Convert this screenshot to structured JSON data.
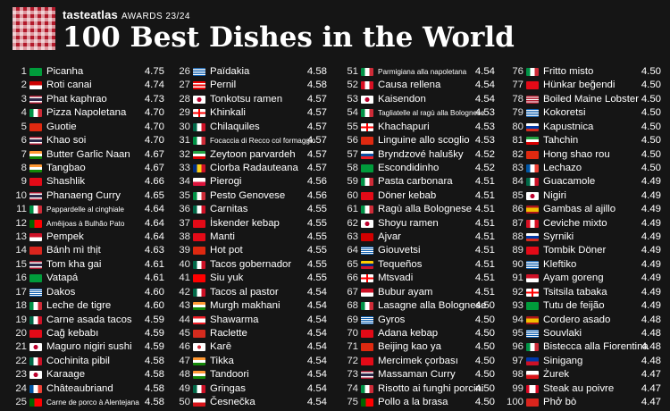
{
  "brand": {
    "name": "tasteatlas",
    "awards": "AWARDS 23/24"
  },
  "title": "100 Best Dishes in the World",
  "columns": [
    [
      {
        "rank": "1",
        "flag": "br",
        "dish": "Picanha",
        "score": "4.75"
      },
      {
        "rank": "2",
        "flag": "my",
        "dish": "Roti canai",
        "score": "4.74"
      },
      {
        "rank": "3",
        "flag": "th",
        "dish": "Phat kaphrao",
        "score": "4.73"
      },
      {
        "rank": "4",
        "flag": "it",
        "dish": "Pizza Napoletana",
        "score": "4.70"
      },
      {
        "rank": "5",
        "flag": "cn",
        "dish": "Guotie",
        "score": "4.70"
      },
      {
        "rank": "6",
        "flag": "th",
        "dish": "Khao soi",
        "score": "4.70"
      },
      {
        "rank": "7",
        "flag": "in",
        "dish": "Butter Garlic Naan",
        "score": "4.67"
      },
      {
        "rank": "8",
        "flag": "in",
        "dish": "Tangbao",
        "score": "4.67"
      },
      {
        "rank": "9",
        "flag": "tr",
        "dish": "Shashlik",
        "score": "4.66"
      },
      {
        "rank": "10",
        "flag": "th",
        "dish": "Phanaeng Curry",
        "score": "4.65"
      },
      {
        "rank": "11",
        "flag": "it",
        "dish": "Pappardelle al cinghiale",
        "score": "4.64",
        "sm": true
      },
      {
        "rank": "12",
        "flag": "pt",
        "dish": "Amêijoas à Bulhão Pato",
        "score": "4.64",
        "sm": true
      },
      {
        "rank": "13",
        "flag": "id",
        "dish": "Pempek",
        "score": "4.64"
      },
      {
        "rank": "14",
        "flag": "vn",
        "dish": "Bánh mì thịt",
        "score": "4.63"
      },
      {
        "rank": "15",
        "flag": "th",
        "dish": "Tom kha gai",
        "score": "4.61"
      },
      {
        "rank": "16",
        "flag": "br",
        "dish": "Vatapá",
        "score": "4.61"
      },
      {
        "rank": "17",
        "flag": "gr",
        "dish": "Dakos",
        "score": "4.60"
      },
      {
        "rank": "18",
        "flag": "it",
        "dish": "Leche de tigre",
        "score": "4.60"
      },
      {
        "rank": "19",
        "flag": "mx",
        "dish": "Carne asada tacos",
        "score": "4.59"
      },
      {
        "rank": "20",
        "flag": "tr",
        "dish": "Cağ kebabı",
        "score": "4.59"
      },
      {
        "rank": "21",
        "flag": "jp",
        "dish": "Maguro nigiri sushi",
        "score": "4.59"
      },
      {
        "rank": "22",
        "flag": "mx",
        "dish": "Cochinita pibil",
        "score": "4.58"
      },
      {
        "rank": "23",
        "flag": "jp",
        "dish": "Karaage",
        "score": "4.58"
      },
      {
        "rank": "24",
        "flag": "fr",
        "dish": "Châteaubriand",
        "score": "4.58"
      },
      {
        "rank": "25",
        "flag": "pt",
        "dish": "Carne de porco à Alentejana",
        "score": "4.58",
        "sm": true
      }
    ],
    [
      {
        "rank": "26",
        "flag": "gr",
        "dish": "Paїdakia",
        "score": "4.58"
      },
      {
        "rank": "27",
        "flag": "pr",
        "dish": "Pernil",
        "score": "4.58"
      },
      {
        "rank": "28",
        "flag": "jp",
        "dish": "Tonkotsu ramen",
        "score": "4.57"
      },
      {
        "rank": "29",
        "flag": "ge",
        "dish": "Khinkali",
        "score": "4.57"
      },
      {
        "rank": "30",
        "flag": "mx",
        "dish": "Chilaquiles",
        "score": "4.57"
      },
      {
        "rank": "31",
        "flag": "it",
        "dish": "Focaccia di Recco col formaggio",
        "score": "4.57",
        "sm": true
      },
      {
        "rank": "32",
        "flag": "ir",
        "dish": "Zeytoon parvardeh",
        "score": "4.57"
      },
      {
        "rank": "33",
        "flag": "ro",
        "dish": "Ciorba Radauteana",
        "score": "4.57"
      },
      {
        "rank": "34",
        "flag": "pl",
        "dish": "Pierogi",
        "score": "4.56"
      },
      {
        "rank": "35",
        "flag": "it",
        "dish": "Pesto Genovese",
        "score": "4.56"
      },
      {
        "rank": "36",
        "flag": "mx",
        "dish": "Carnitas",
        "score": "4.55"
      },
      {
        "rank": "37",
        "flag": "tr",
        "dish": "İskender kebap",
        "score": "4.55"
      },
      {
        "rank": "38",
        "flag": "tr",
        "dish": "Manti",
        "score": "4.55"
      },
      {
        "rank": "39",
        "flag": "cn",
        "dish": "Hot pot",
        "score": "4.55"
      },
      {
        "rank": "40",
        "flag": "mx",
        "dish": "Tacos gobernador",
        "score": "4.55"
      },
      {
        "rank": "41",
        "flag": "tw",
        "dish": "Siu yuk",
        "score": "4.55"
      },
      {
        "rank": "42",
        "flag": "mx",
        "dish": "Tacos al pastor",
        "score": "4.54"
      },
      {
        "rank": "43",
        "flag": "in",
        "dish": "Murgh makhani",
        "score": "4.54"
      },
      {
        "rank": "44",
        "flag": "lb",
        "dish": "Shawarma",
        "score": "4.54"
      },
      {
        "rank": "45",
        "flag": "ch",
        "dish": "Raclette",
        "score": "4.54"
      },
      {
        "rank": "46",
        "flag": "kr",
        "dish": "Karē",
        "score": "4.54"
      },
      {
        "rank": "47",
        "flag": "in",
        "dish": "Tikka",
        "score": "4.54"
      },
      {
        "rank": "48",
        "flag": "in",
        "dish": "Tandoori",
        "score": "4.54"
      },
      {
        "rank": "49",
        "flag": "mx",
        "dish": "Gringas",
        "score": "4.54"
      },
      {
        "rank": "50",
        "flag": "cz",
        "dish": "Česnečka",
        "score": "4.54"
      }
    ],
    [
      {
        "rank": "51",
        "flag": "it",
        "dish": "Parmigiana alla napoletana",
        "score": "4.54",
        "sm": true
      },
      {
        "rank": "52",
        "flag": "pe",
        "dish": "Causa rellena",
        "score": "4.54"
      },
      {
        "rank": "53",
        "flag": "jp",
        "dish": "Kaisendon",
        "score": "4.54"
      },
      {
        "rank": "54",
        "flag": "it",
        "dish": "Tagliatelle al ragù alla Bolognese",
        "score": "4.53",
        "sm": true
      },
      {
        "rank": "55",
        "flag": "ge",
        "dish": "Khachapuri",
        "score": "4.53"
      },
      {
        "rank": "56",
        "flag": "cn",
        "dish": "Linguine allo scoglio",
        "score": "4.53"
      },
      {
        "rank": "57",
        "flag": "sk",
        "dish": "Bryndzové halušky",
        "score": "4.52"
      },
      {
        "rank": "58",
        "flag": "br",
        "dish": "Escondidinho",
        "score": "4.52"
      },
      {
        "rank": "59",
        "flag": "it",
        "dish": "Pasta carbonara",
        "score": "4.51"
      },
      {
        "rank": "60",
        "flag": "tr",
        "dish": "Döner kebab",
        "score": "4.51"
      },
      {
        "rank": "61",
        "flag": "it",
        "dish": "Ragù alla Bolognese",
        "score": "4.51"
      },
      {
        "rank": "62",
        "flag": "jp",
        "dish": "Shoyu ramen",
        "score": "4.51"
      },
      {
        "rank": "63",
        "flag": "mk",
        "dish": "Ajvar",
        "score": "4.51"
      },
      {
        "rank": "64",
        "flag": "gr",
        "dish": "Giouvetsi",
        "score": "4.51"
      },
      {
        "rank": "65",
        "flag": "ve",
        "dish": "Tequeños",
        "score": "4.51"
      },
      {
        "rank": "66",
        "flag": "ge",
        "dish": "Mtsvadi",
        "score": "4.51"
      },
      {
        "rank": "67",
        "flag": "id",
        "dish": "Bubur ayam",
        "score": "4.51"
      },
      {
        "rank": "68",
        "flag": "it",
        "dish": "Lasagne alla Bolognese",
        "score": "4.50"
      },
      {
        "rank": "69",
        "flag": "gr",
        "dish": "Gyros",
        "score": "4.50"
      },
      {
        "rank": "70",
        "flag": "tr",
        "dish": "Adana kebap",
        "score": "4.50"
      },
      {
        "rank": "71",
        "flag": "cn",
        "dish": "Beijing kao ya",
        "score": "4.50"
      },
      {
        "rank": "72",
        "flag": "tr",
        "dish": "Mercimek çorbası",
        "score": "4.50"
      },
      {
        "rank": "73",
        "flag": "th",
        "dish": "Massaman Curry",
        "score": "4.50"
      },
      {
        "rank": "74",
        "flag": "it",
        "dish": "Risotto ai funghi porcini",
        "score": "4.50"
      },
      {
        "rank": "75",
        "flag": "pt",
        "dish": "Pollo a la brasa",
        "score": "4.50"
      }
    ],
    [
      {
        "rank": "76",
        "flag": "it",
        "dish": "Fritto misto",
        "score": "4.50"
      },
      {
        "rank": "77",
        "flag": "tr",
        "dish": "Hünkar beğendi",
        "score": "4.50"
      },
      {
        "rank": "78",
        "flag": "us",
        "dish": "Boiled Maine Lobster",
        "score": "4.50"
      },
      {
        "rank": "79",
        "flag": "gr",
        "dish": "Kokoretsi",
        "score": "4.50"
      },
      {
        "rank": "80",
        "flag": "ru",
        "dish": "Kapustnica",
        "score": "4.50"
      },
      {
        "rank": "81",
        "flag": "ir",
        "dish": "Tahchin",
        "score": "4.50"
      },
      {
        "rank": "82",
        "flag": "cn",
        "dish": "Hong shao rou",
        "score": "4.50"
      },
      {
        "rank": "83",
        "flag": "fr",
        "dish": "Lechazo",
        "score": "4.50"
      },
      {
        "rank": "84",
        "flag": "mx",
        "dish": "Guacamole",
        "score": "4.49"
      },
      {
        "rank": "85",
        "flag": "jp",
        "dish": "Nigiri",
        "score": "4.49"
      },
      {
        "rank": "86",
        "flag": "es",
        "dish": "Gambas al ajillo",
        "score": "4.49"
      },
      {
        "rank": "87",
        "flag": "pe",
        "dish": "Ceviche mixto",
        "score": "4.49"
      },
      {
        "rank": "88",
        "flag": "ru",
        "dish": "Syrniki",
        "score": "4.49"
      },
      {
        "rank": "89",
        "flag": "tr",
        "dish": "Tombik Döner",
        "score": "4.49"
      },
      {
        "rank": "90",
        "flag": "gr",
        "dish": "Kleftiko",
        "score": "4.49"
      },
      {
        "rank": "91",
        "flag": "id",
        "dish": "Ayam goreng",
        "score": "4.49"
      },
      {
        "rank": "92",
        "flag": "ge",
        "dish": "Tsitsila tabaka",
        "score": "4.49"
      },
      {
        "rank": "93",
        "flag": "br",
        "dish": "Tutu de feijão",
        "score": "4.49"
      },
      {
        "rank": "94",
        "flag": "es",
        "dish": "Cordero asado",
        "score": "4.48"
      },
      {
        "rank": "95",
        "flag": "gr",
        "dish": "Souvlaki",
        "score": "4.48"
      },
      {
        "rank": "96",
        "flag": "it",
        "dish": "Bistecca alla Fiorentina",
        "score": "4.48"
      },
      {
        "rank": "97",
        "flag": "ph",
        "dish": "Sinigang",
        "score": "4.48"
      },
      {
        "rank": "98",
        "flag": "cz",
        "dish": "Żurek",
        "score": "4.47"
      },
      {
        "rank": "99",
        "flag": "ca",
        "dish": "Steak au poivre",
        "score": "4.47"
      },
      {
        "rank": "100",
        "flag": "vn",
        "dish": "Phở bò",
        "score": "4.47"
      }
    ]
  ]
}
